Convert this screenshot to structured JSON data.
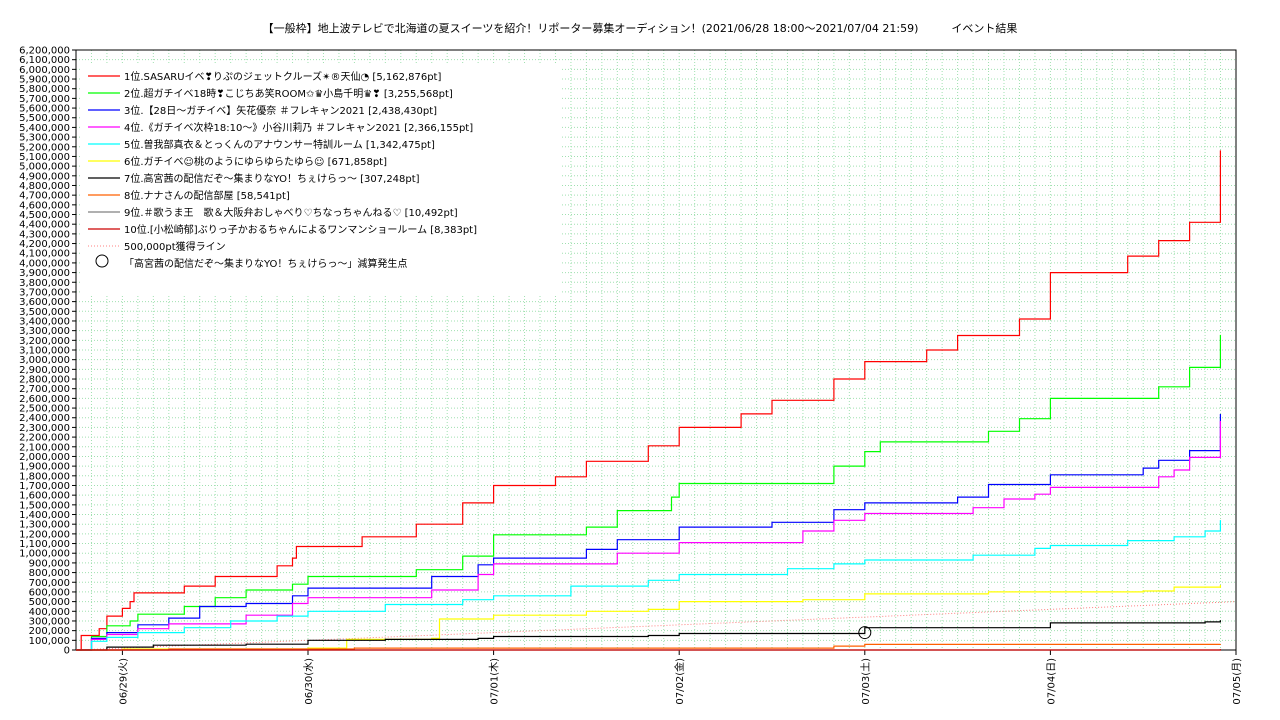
{
  "chart_data": {
    "type": "line",
    "title": "【一般枠】地上波テレビで北海道の夏スイーツを紹介！リポーター募集オーディション！(2021/06/28 18:00～2021/07/04 21:59)　　　イベント結果",
    "xlabel": "",
    "ylabel": "",
    "x_ticks": [
      "06/29(火)",
      "06/30(水)",
      "07/01(木)",
      "07/02(金)",
      "07/03(土)",
      "07/04(日)",
      "07/05(月)"
    ],
    "x_range": [
      "2021-06-28T18:00",
      "2021-07-05T00:00"
    ],
    "ylim": [
      0,
      6200000
    ],
    "y_ticks": [
      "0",
      "100,000",
      "200,000",
      "300,000",
      "400,000",
      "500,000",
      "600,000",
      "700,000",
      "800,000",
      "900,000",
      "1,000,000",
      "1,100,000",
      "1,200,000",
      "1,300,000",
      "1,400,000",
      "1,500,000",
      "1,600,000",
      "1,700,000",
      "1,800,000",
      "1,900,000",
      "2,000,000",
      "2,100,000",
      "2,200,000",
      "2,300,000",
      "2,400,000",
      "2,500,000",
      "2,600,000",
      "2,700,000",
      "2,800,000",
      "2,900,000",
      "3,000,000",
      "3,100,000",
      "3,200,000",
      "3,300,000",
      "3,400,000",
      "3,500,000",
      "3,600,000",
      "3,700,000",
      "3,800,000",
      "3,900,000",
      "4,000,000",
      "4,100,000",
      "4,200,000",
      "4,300,000",
      "4,400,000",
      "4,500,000",
      "4,600,000",
      "4,700,000",
      "4,800,000",
      "4,900,000",
      "5,000,000",
      "5,100,000",
      "5,200,000",
      "5,300,000",
      "5,400,000",
      "5,500,000",
      "5,600,000",
      "5,700,000",
      "5,800,000",
      "5,900,000",
      "6,000,000",
      "6,100,000",
      "6,200,000"
    ],
    "grid": true,
    "legend_position": "top-left",
    "series": [
      {
        "name": "1位.SASARUイベ❣りぷのジェットクルーズ✴®天仙◔ [5,162,876pt]",
        "color": "#ff0000",
        "points": [
          [
            "2021-06-28T18:00",
            0
          ],
          [
            "2021-06-28T18:40",
            150000
          ],
          [
            "2021-06-28T21:00",
            220000
          ],
          [
            "2021-06-28T22:00",
            350000
          ],
          [
            "2021-06-29T00:00",
            430000
          ],
          [
            "2021-06-29T01:00",
            500000
          ],
          [
            "2021-06-29T01:30",
            590000
          ],
          [
            "2021-06-29T06:00",
            590000
          ],
          [
            "2021-06-29T08:00",
            660000
          ],
          [
            "2021-06-29T12:00",
            760000
          ],
          [
            "2021-06-29T20:00",
            870000
          ],
          [
            "2021-06-29T22:00",
            950000
          ],
          [
            "2021-06-29T22:30",
            1070000
          ],
          [
            "2021-06-30T06:00",
            1070000
          ],
          [
            "2021-06-30T07:00",
            1170000
          ],
          [
            "2021-06-30T14:00",
            1300000
          ],
          [
            "2021-06-30T20:00",
            1520000
          ],
          [
            "2021-07-01T00:00",
            1700000
          ],
          [
            "2021-07-01T08:00",
            1790000
          ],
          [
            "2021-07-01T12:00",
            1950000
          ],
          [
            "2021-07-01T20:00",
            2110000
          ],
          [
            "2021-07-02T00:00",
            2300000
          ],
          [
            "2021-07-02T08:00",
            2440000
          ],
          [
            "2021-07-02T12:00",
            2580000
          ],
          [
            "2021-07-02T20:00",
            2800000
          ],
          [
            "2021-07-03T00:00",
            2980000
          ],
          [
            "2021-07-03T08:00",
            3100000
          ],
          [
            "2021-07-03T12:00",
            3250000
          ],
          [
            "2021-07-03T20:00",
            3420000
          ],
          [
            "2021-07-04T00:00",
            3900000
          ],
          [
            "2021-07-04T10:00",
            4070000
          ],
          [
            "2021-07-04T14:00",
            4230000
          ],
          [
            "2021-07-04T18:00",
            4420000
          ],
          [
            "2021-07-04T21:59",
            5162876
          ]
        ]
      },
      {
        "name": "2位.超ガチイベ18時❣こじちあ笑ROOM✩♛小島千明♛❣ [3,255,568pt]",
        "color": "#00ff00",
        "points": [
          [
            "2021-06-28T18:00",
            0
          ],
          [
            "2021-06-28T20:00",
            140000
          ],
          [
            "2021-06-28T22:00",
            250000
          ],
          [
            "2021-06-29T01:00",
            300000
          ],
          [
            "2021-06-29T02:00",
            370000
          ],
          [
            "2021-06-29T08:00",
            450000
          ],
          [
            "2021-06-29T12:00",
            540000
          ],
          [
            "2021-06-29T16:00",
            620000
          ],
          [
            "2021-06-29T22:00",
            680000
          ],
          [
            "2021-06-30T00:00",
            760000
          ],
          [
            "2021-06-30T14:00",
            830000
          ],
          [
            "2021-06-30T20:00",
            970000
          ],
          [
            "2021-07-01T00:00",
            1190000
          ],
          [
            "2021-07-01T12:00",
            1270000
          ],
          [
            "2021-07-01T16:00",
            1440000
          ],
          [
            "2021-07-01T23:00",
            1580000
          ],
          [
            "2021-07-02T00:00",
            1720000
          ],
          [
            "2021-07-02T20:00",
            1900000
          ],
          [
            "2021-07-03T00:00",
            2050000
          ],
          [
            "2021-07-03T02:00",
            2150000
          ],
          [
            "2021-07-03T16:00",
            2260000
          ],
          [
            "2021-07-03T20:00",
            2390000
          ],
          [
            "2021-07-04T00:00",
            2600000
          ],
          [
            "2021-07-04T14:00",
            2720000
          ],
          [
            "2021-07-04T18:00",
            2920000
          ],
          [
            "2021-07-04T21:59",
            3255568
          ]
        ]
      },
      {
        "name": "3位.【28日～ガチイベ】矢花優奈 ＃フレキャン2021 [2,438,430pt]",
        "color": "#0000ff",
        "points": [
          [
            "2021-06-28T18:00",
            0
          ],
          [
            "2021-06-28T20:00",
            120000
          ],
          [
            "2021-06-28T22:00",
            180000
          ],
          [
            "2021-06-29T02:00",
            260000
          ],
          [
            "2021-06-29T06:00",
            330000
          ],
          [
            "2021-06-29T10:00",
            450000
          ],
          [
            "2021-06-29T16:00",
            480000
          ],
          [
            "2021-06-29T22:00",
            560000
          ],
          [
            "2021-06-30T00:00",
            640000
          ],
          [
            "2021-06-30T16:00",
            760000
          ],
          [
            "2021-06-30T22:00",
            880000
          ],
          [
            "2021-07-01T00:00",
            950000
          ],
          [
            "2021-07-01T12:00",
            1040000
          ],
          [
            "2021-07-01T16:00",
            1140000
          ],
          [
            "2021-07-02T00:00",
            1270000
          ],
          [
            "2021-07-02T12:00",
            1320000
          ],
          [
            "2021-07-02T20:00",
            1450000
          ],
          [
            "2021-07-03T00:00",
            1520000
          ],
          [
            "2021-07-03T12:00",
            1580000
          ],
          [
            "2021-07-03T16:00",
            1710000
          ],
          [
            "2021-07-04T00:00",
            1810000
          ],
          [
            "2021-07-04T12:00",
            1880000
          ],
          [
            "2021-07-04T14:00",
            1960000
          ],
          [
            "2021-07-04T18:00",
            2060000
          ],
          [
            "2021-07-04T21:59",
            2438430
          ]
        ]
      },
      {
        "name": "4位.《ガチイベ次枠18:10～》小谷川莉乃 ＃フレキャン2021 [2,366,155pt]",
        "color": "#ff00ff",
        "points": [
          [
            "2021-06-28T18:00",
            0
          ],
          [
            "2021-06-28T20:00",
            110000
          ],
          [
            "2021-06-28T22:00",
            160000
          ],
          [
            "2021-06-29T02:00",
            220000
          ],
          [
            "2021-06-29T06:00",
            270000
          ],
          [
            "2021-06-29T16:00",
            360000
          ],
          [
            "2021-06-29T22:00",
            480000
          ],
          [
            "2021-06-30T00:00",
            540000
          ],
          [
            "2021-06-30T16:00",
            620000
          ],
          [
            "2021-06-30T22:00",
            780000
          ],
          [
            "2021-07-01T00:00",
            890000
          ],
          [
            "2021-07-01T16:00",
            1000000
          ],
          [
            "2021-07-02T00:00",
            1110000
          ],
          [
            "2021-07-02T16:00",
            1230000
          ],
          [
            "2021-07-02T20:00",
            1340000
          ],
          [
            "2021-07-03T00:00",
            1410000
          ],
          [
            "2021-07-03T14:00",
            1470000
          ],
          [
            "2021-07-03T18:00",
            1560000
          ],
          [
            "2021-07-03T22:00",
            1610000
          ],
          [
            "2021-07-04T00:00",
            1680000
          ],
          [
            "2021-07-04T14:00",
            1790000
          ],
          [
            "2021-07-04T16:00",
            1860000
          ],
          [
            "2021-07-04T18:00",
            1990000
          ],
          [
            "2021-07-04T21:59",
            2366155
          ]
        ]
      },
      {
        "name": "5位.曽我部真衣＆とっくんのアナウンサー特訓ルーム [1,342,475pt]",
        "color": "#00ffff",
        "points": [
          [
            "2021-06-28T18:00",
            0
          ],
          [
            "2021-06-28T20:00",
            90000
          ],
          [
            "2021-06-28T22:00",
            130000
          ],
          [
            "2021-06-29T02:00",
            180000
          ],
          [
            "2021-06-29T08:00",
            230000
          ],
          [
            "2021-06-29T14:00",
            300000
          ],
          [
            "2021-06-29T20:00",
            350000
          ],
          [
            "2021-06-30T00:00",
            400000
          ],
          [
            "2021-06-30T10:00",
            470000
          ],
          [
            "2021-06-30T20:00",
            520000
          ],
          [
            "2021-07-01T00:00",
            560000
          ],
          [
            "2021-07-01T10:00",
            660000
          ],
          [
            "2021-07-01T20:00",
            720000
          ],
          [
            "2021-07-02T00:00",
            780000
          ],
          [
            "2021-07-02T14:00",
            840000
          ],
          [
            "2021-07-02T20:00",
            890000
          ],
          [
            "2021-07-03T00:00",
            930000
          ],
          [
            "2021-07-03T14:00",
            980000
          ],
          [
            "2021-07-03T22:00",
            1050000
          ],
          [
            "2021-07-04T00:00",
            1080000
          ],
          [
            "2021-07-04T10:00",
            1130000
          ],
          [
            "2021-07-04T16:00",
            1170000
          ],
          [
            "2021-07-04T20:00",
            1230000
          ],
          [
            "2021-07-04T21:59",
            1342475
          ]
        ]
      },
      {
        "name": "6位.ガチイベ☺桃のようにゆらゆらたゆら☺ [671,858pt]",
        "color": "#ffff00",
        "points": [
          [
            "2021-06-28T18:00",
            0
          ],
          [
            "2021-06-29T00:00",
            10000
          ],
          [
            "2021-06-30T00:00",
            20000
          ],
          [
            "2021-06-30T05:00",
            110000
          ],
          [
            "2021-06-30T16:00",
            120000
          ],
          [
            "2021-06-30T17:00",
            320000
          ],
          [
            "2021-07-01T00:00",
            360000
          ],
          [
            "2021-07-01T12:00",
            400000
          ],
          [
            "2021-07-01T20:00",
            420000
          ],
          [
            "2021-07-02T00:00",
            500000
          ],
          [
            "2021-07-02T16:00",
            520000
          ],
          [
            "2021-07-03T00:00",
            580000
          ],
          [
            "2021-07-03T16:00",
            600000
          ],
          [
            "2021-07-04T12:00",
            610000
          ],
          [
            "2021-07-04T16:00",
            650000
          ],
          [
            "2021-07-04T21:59",
            671858
          ]
        ]
      },
      {
        "name": "7位.高宮茜の配信だぞ～集まりなYO！ちぇけらっ～ [307,248pt]",
        "color": "#000000",
        "points": [
          [
            "2021-06-28T18:00",
            0
          ],
          [
            "2021-06-28T22:00",
            30000
          ],
          [
            "2021-06-29T04:00",
            50000
          ],
          [
            "2021-06-29T16:00",
            60000
          ],
          [
            "2021-06-30T00:00",
            100000
          ],
          [
            "2021-06-30T10:00",
            110000
          ],
          [
            "2021-06-30T22:00",
            120000
          ],
          [
            "2021-07-01T00:00",
            140000
          ],
          [
            "2021-07-01T20:00",
            150000
          ],
          [
            "2021-07-02T00:00",
            170000
          ],
          [
            "2021-07-02T14:00",
            170000
          ],
          [
            "2021-07-02T22:00",
            170000
          ],
          [
            "2021-07-03T00:00",
            230000
          ],
          [
            "2021-07-03T20:00",
            230000
          ],
          [
            "2021-07-04T00:00",
            280000
          ],
          [
            "2021-07-04T20:00",
            290000
          ],
          [
            "2021-07-04T21:59",
            307248
          ]
        ]
      },
      {
        "name": "8位.ナナさんの配信部屋 [58,541pt]",
        "color": "#ff6000",
        "points": [
          [
            "2021-06-28T18:00",
            0
          ],
          [
            "2021-06-29T06:00",
            10000
          ],
          [
            "2021-06-30T06:00",
            20000
          ],
          [
            "2021-07-02T20:00",
            40000
          ],
          [
            "2021-07-03T00:00",
            58000
          ],
          [
            "2021-07-04T21:59",
            58541
          ]
        ]
      },
      {
        "name": "9位.＃歌うま王　歌＆大阪弁おしゃべり♡ちなっちゃんねる♡ [10,492pt]",
        "color": "#808080",
        "points": [
          [
            "2021-06-28T18:00",
            0
          ],
          [
            "2021-07-04T21:59",
            10492
          ]
        ]
      },
      {
        "name": "10位.[小松崎郁]ぶりっ子かおるちゃんによるワンマンショールーム [8,383pt]",
        "color": "#cc0000",
        "points": [
          [
            "2021-06-28T18:00",
            0
          ],
          [
            "2021-07-04T21:59",
            8383
          ]
        ]
      }
    ],
    "reference_line": {
      "name": "500,000pt獲得ライン",
      "color": "#ff8080",
      "value": 500000
    },
    "marker": {
      "name": "「高宮茜の配信だぞ～集まりなYO！ちぇけらっ～」減算発生点",
      "x": "2021-07-03T00:00",
      "y": 180000
    }
  }
}
